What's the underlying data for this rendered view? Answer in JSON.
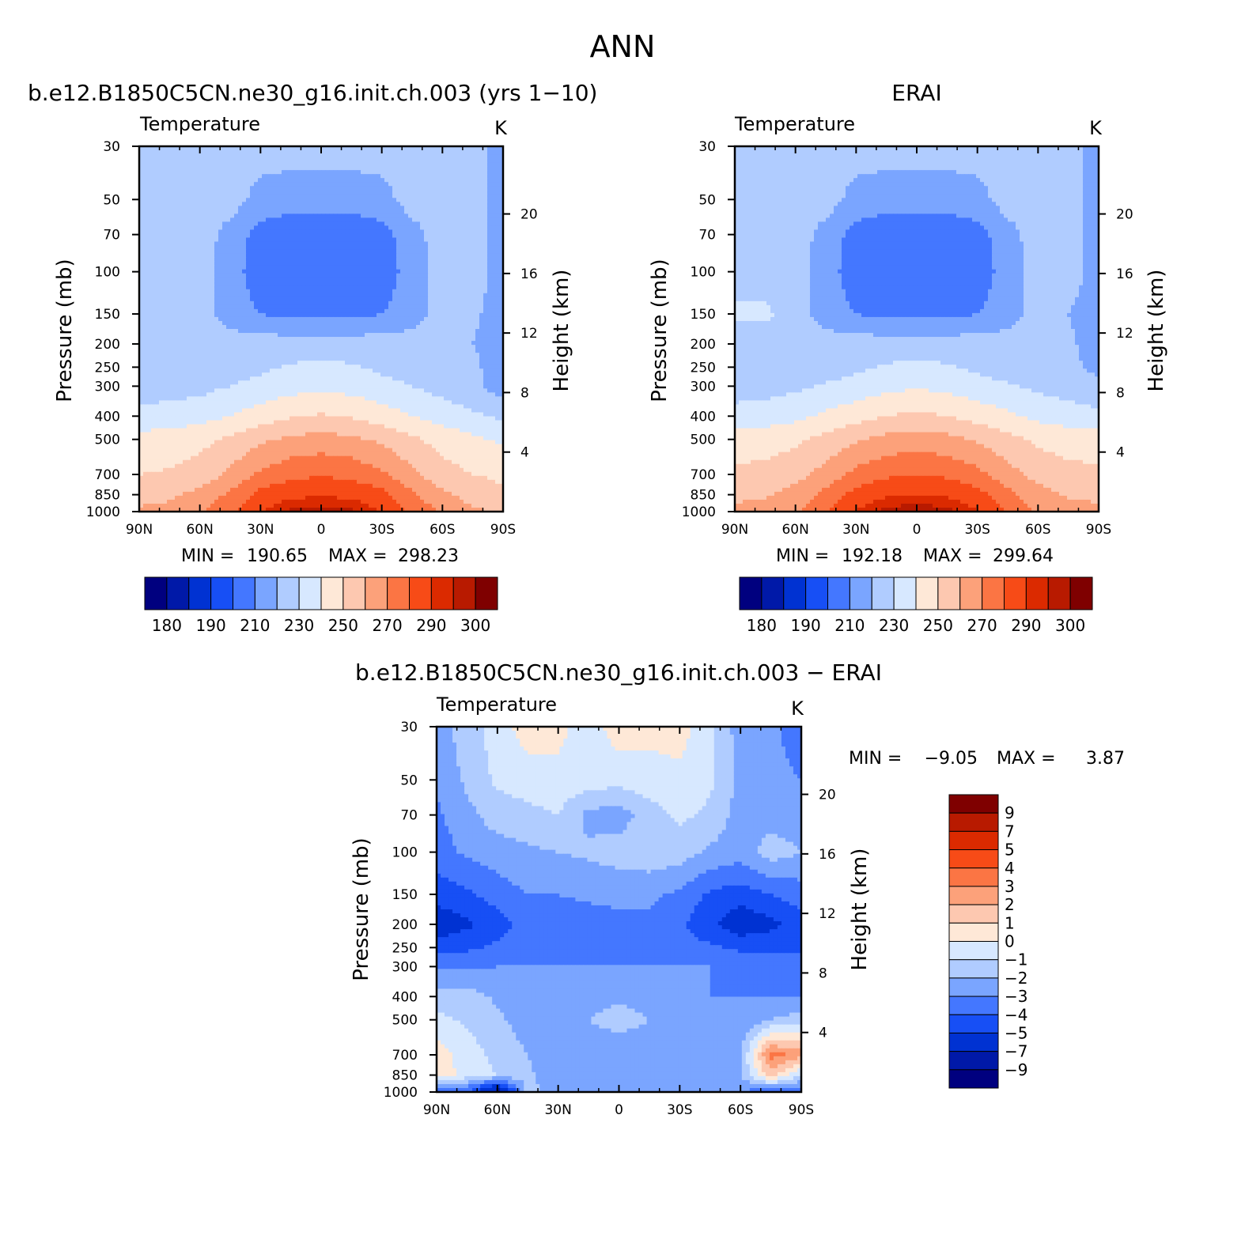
{
  "figure_title": "ANN",
  "colors": {
    "frame": "#000000",
    "abs_scale": [
      "#00007f",
      "#0019a8",
      "#0032d2",
      "#174ff5",
      "#4477ff",
      "#7aa5ff",
      "#b0ccff",
      "#d7e8ff",
      "#fee8d7",
      "#fdc8b0",
      "#fca17a",
      "#fb7544",
      "#f74b17",
      "#db2a00",
      "#b81a00",
      "#7f0000"
    ],
    "diff_scale": [
      "#00007f",
      "#0019a8",
      "#0032d2",
      "#174ff5",
      "#4477ff",
      "#7aa5ff",
      "#b0ccff",
      "#d7e8ff",
      "#fee8d7",
      "#fdc8b0",
      "#fca17a",
      "#fb7544",
      "#f74b17",
      "#db2a00",
      "#b81a00",
      "#7f0000"
    ]
  },
  "chart_data": [
    {
      "type": "heatmap",
      "title": "b.e12.B1850C5CN.ne30_g16.init.ch.003 (yrs 1−10)",
      "variable": "Temperature",
      "units": "K",
      "xlabel": "",
      "ylabel": "Pressure (mb)",
      "ylabel_right": "Height (km)",
      "x_ticks": [
        "90N",
        "60N",
        "30N",
        "0",
        "30S",
        "60S",
        "90S"
      ],
      "x_range": [
        90,
        -90
      ],
      "y_scale": "log",
      "y_range": [
        1000,
        30
      ],
      "y_ticks": [
        30,
        50,
        70,
        100,
        150,
        200,
        250,
        300,
        400,
        500,
        700,
        850,
        1000
      ],
      "y_ticks_right": [
        20,
        16,
        12,
        8,
        4
      ],
      "min_label": "MIN =",
      "min_value": "190.65",
      "max_label": "MAX =",
      "max_value": "298.23",
      "legend": "colorbar-below",
      "levels": [
        180,
        185,
        190,
        200,
        210,
        220,
        230,
        240,
        250,
        260,
        270,
        280,
        290,
        295,
        300
      ],
      "colorbar_labels": [
        "180",
        "190",
        "210",
        "230",
        "250",
        "270",
        "290",
        "300"
      ],
      "field": {
        "lat": [
          90,
          75,
          60,
          45,
          30,
          15,
          0,
          -15,
          -30,
          -45,
          -60,
          -75,
          -90
        ],
        "pressure": [
          30,
          50,
          70,
          100,
          150,
          200,
          250,
          300,
          400,
          500,
          700,
          850,
          1000
        ],
        "values": [
          [
            225,
            225,
            225,
            225,
            225,
            225,
            225,
            225,
            225,
            225,
            225,
            225,
            215
          ],
          [
            225,
            225,
            225,
            225,
            216,
            214,
            214,
            214,
            216,
            225,
            225,
            225,
            215
          ],
          [
            225,
            225,
            225,
            216,
            206,
            204,
            204,
            204,
            206,
            216,
            225,
            225,
            215
          ],
          [
            225,
            225,
            225,
            215,
            204,
            200,
            200,
            200,
            204,
            215,
            225,
            225,
            215
          ],
          [
            225,
            225,
            225,
            215,
            210,
            207,
            207,
            207,
            210,
            215,
            225,
            222,
            215
          ],
          [
            225,
            225,
            225,
            225,
            225,
            225,
            225,
            225,
            225,
            225,
            225,
            220,
            215
          ],
          [
            225,
            225,
            225,
            225,
            228,
            231,
            232,
            231,
            228,
            225,
            225,
            222,
            215
          ],
          [
            225,
            226,
            227,
            230,
            233,
            236,
            238,
            236,
            233,
            230,
            226,
            222,
            215
          ],
          [
            233,
            234,
            236,
            240,
            245,
            249,
            251,
            249,
            245,
            240,
            236,
            232,
            228
          ],
          [
            244,
            245,
            247,
            252,
            258,
            262,
            264,
            262,
            258,
            252,
            246,
            242,
            238
          ],
          [
            250,
            251,
            254,
            262,
            272,
            277,
            279,
            277,
            272,
            262,
            254,
            250,
            248
          ],
          [
            256,
            258,
            263,
            272,
            283,
            288,
            289,
            288,
            283,
            272,
            262,
            256,
            252
          ],
          [
            262,
            263,
            268,
            278,
            290,
            296,
            298,
            296,
            290,
            278,
            268,
            262,
            258
          ]
        ]
      }
    },
    {
      "type": "heatmap",
      "title": "ERAI",
      "variable": "Temperature",
      "units": "K",
      "xlabel": "",
      "ylabel": "Pressure (mb)",
      "ylabel_right": "Height (km)",
      "x_ticks": [
        "90N",
        "60N",
        "30N",
        "0",
        "30S",
        "60S",
        "90S"
      ],
      "x_range": [
        90,
        -90
      ],
      "y_scale": "log",
      "y_range": [
        1000,
        30
      ],
      "y_ticks": [
        30,
        50,
        70,
        100,
        150,
        200,
        250,
        300,
        400,
        500,
        700,
        850,
        1000
      ],
      "y_ticks_right": [
        20,
        16,
        12,
        8,
        4
      ],
      "min_label": "MIN =",
      "min_value": "192.18",
      "max_label": "MAX =",
      "max_value": "299.64",
      "legend": "colorbar-below",
      "levels": [
        180,
        185,
        190,
        200,
        210,
        220,
        230,
        240,
        250,
        260,
        270,
        280,
        290,
        295,
        300
      ],
      "colorbar_labels": [
        "180",
        "190",
        "210",
        "230",
        "250",
        "270",
        "290",
        "300"
      ],
      "field": {
        "lat": [
          90,
          75,
          60,
          45,
          30,
          15,
          0,
          -15,
          -30,
          -45,
          -60,
          -75,
          -90
        ],
        "pressure": [
          30,
          50,
          70,
          100,
          150,
          200,
          250,
          300,
          400,
          500,
          700,
          850,
          1000
        ],
        "values": [
          [
            225,
            225,
            225,
            225,
            225,
            225,
            225,
            225,
            225,
            225,
            225,
            225,
            215
          ],
          [
            225,
            225,
            225,
            225,
            216,
            214,
            214,
            214,
            216,
            225,
            225,
            225,
            215
          ],
          [
            225,
            225,
            225,
            216,
            206,
            204,
            204,
            204,
            206,
            216,
            225,
            225,
            215
          ],
          [
            225,
            225,
            225,
            215,
            204,
            201,
            201,
            201,
            204,
            215,
            225,
            225,
            215
          ],
          [
            232,
            232,
            225,
            215,
            210,
            207,
            207,
            207,
            210,
            215,
            225,
            220,
            215
          ],
          [
            225,
            225,
            225,
            225,
            225,
            225,
            225,
            225,
            225,
            225,
            225,
            222,
            215
          ],
          [
            225,
            225,
            225,
            225,
            228,
            231,
            232,
            231,
            228,
            225,
            225,
            222,
            218
          ],
          [
            225,
            226,
            228,
            231,
            234,
            237,
            239,
            237,
            234,
            231,
            228,
            225,
            222
          ],
          [
            234,
            235,
            237,
            242,
            246,
            250,
            252,
            250,
            246,
            242,
            237,
            235,
            233
          ],
          [
            245,
            246,
            248,
            253,
            259,
            263,
            265,
            263,
            259,
            253,
            248,
            246,
            245
          ],
          [
            252,
            253,
            256,
            264,
            273,
            278,
            280,
            278,
            273,
            264,
            256,
            253,
            252
          ],
          [
            258,
            259,
            264,
            273,
            284,
            289,
            290,
            289,
            284,
            273,
            264,
            259,
            258
          ],
          [
            262,
            264,
            269,
            279,
            291,
            297,
            299,
            297,
            291,
            279,
            269,
            264,
            262
          ]
        ]
      }
    },
    {
      "type": "heatmap",
      "title": "b.e12.B1850C5CN.ne30_g16.init.ch.003 − ERAI",
      "variable": "Temperature",
      "units": "K",
      "xlabel": "",
      "ylabel": "Pressure (mb)",
      "ylabel_right": "Height (km)",
      "x_ticks": [
        "90N",
        "60N",
        "30N",
        "0",
        "30S",
        "60S",
        "90S"
      ],
      "x_range": [
        90,
        -90
      ],
      "y_scale": "log",
      "y_range": [
        1000,
        30
      ],
      "y_ticks": [
        30,
        50,
        70,
        100,
        150,
        200,
        250,
        300,
        400,
        500,
        700,
        850,
        1000
      ],
      "y_ticks_right": [
        20,
        16,
        12,
        8,
        4
      ],
      "min_label": "MIN =",
      "min_value": "−9.05",
      "max_label": "MAX =",
      "max_value": "3.87",
      "legend": "colorbar-right",
      "levels": [
        -9,
        -7,
        -5,
        -4,
        -3,
        -2,
        -1,
        0,
        1,
        2,
        3,
        4,
        5,
        7,
        9
      ],
      "colorbar_labels": [
        "9",
        "7",
        "5",
        "4",
        "3",
        "2",
        "1",
        "0",
        "−1",
        "−2",
        "−3",
        "−4",
        "−5",
        "−7",
        "−9"
      ],
      "field": {
        "lat": [
          90,
          75,
          60,
          45,
          30,
          15,
          0,
          -15,
          -30,
          -45,
          -60,
          -75,
          -90
        ],
        "pressure": [
          30,
          50,
          70,
          100,
          150,
          200,
          250,
          300,
          400,
          500,
          700,
          850,
          1000
        ],
        "values": [
          [
            -2.5,
            -1.5,
            -0.5,
            0.5,
            0.3,
            -0.5,
            0.5,
            0.3,
            0.5,
            -0.8,
            -2.5,
            -2.8,
            -3.5
          ],
          [
            -2.8,
            -1.8,
            -0.8,
            -0.5,
            -0.3,
            -0.5,
            -0.6,
            -0.4,
            -0.3,
            -0.8,
            -2.3,
            -2.7,
            -3.0
          ],
          [
            -3.2,
            -2.3,
            -1.5,
            -1.3,
            -1.0,
            -2.3,
            -2.5,
            -1.5,
            -0.8,
            -1.2,
            -2.5,
            -2.5,
            -2.5
          ],
          [
            -3.5,
            -2.8,
            -2.5,
            -2.2,
            -2.0,
            -1.8,
            -1.5,
            -1.3,
            -1.5,
            -2.2,
            -2.5,
            -1.5,
            -2.0
          ],
          [
            -4.5,
            -4.2,
            -3.5,
            -3.0,
            -3.0,
            -2.8,
            -2.8,
            -2.8,
            -3.2,
            -4.2,
            -4.5,
            -4.0,
            -3.5
          ],
          [
            -5.8,
            -5.2,
            -4.5,
            -3.6,
            -3.5,
            -3.5,
            -3.2,
            -3.2,
            -3.8,
            -4.8,
            -5.8,
            -5.3,
            -4.5
          ],
          [
            -4.5,
            -4.2,
            -3.8,
            -3.5,
            -3.2,
            -3.5,
            -3.8,
            -3.5,
            -3.6,
            -3.8,
            -4.2,
            -4.2,
            -4.2
          ],
          [
            -3.2,
            -3.2,
            -3.0,
            -3.0,
            -3.0,
            -3.0,
            -3.0,
            -3.0,
            -3.0,
            -3.0,
            -3.2,
            -3.2,
            -3.2
          ],
          [
            -1.5,
            -1.5,
            -2.2,
            -2.8,
            -3.0,
            -2.6,
            -2.2,
            -2.6,
            -3.0,
            -3.0,
            -3.0,
            -3.0,
            -3.0
          ],
          [
            -0.7,
            -1.2,
            -1.8,
            -2.5,
            -2.5,
            -2.0,
            -1.5,
            -2.0,
            -2.6,
            -2.8,
            -2.8,
            -2.0,
            -1.5
          ],
          [
            0.5,
            -0.5,
            -1.3,
            -2.0,
            -2.8,
            -2.8,
            -2.8,
            -2.8,
            -2.8,
            -2.8,
            -2.2,
            3.5,
            2.5
          ],
          [
            0.8,
            -0.5,
            -1.0,
            -1.8,
            -2.7,
            -2.8,
            -3.0,
            -2.8,
            -2.8,
            -2.6,
            -2.0,
            1.5,
            -1.0
          ],
          [
            -3.5,
            -4.0,
            -8.0,
            -1.5,
            -2.8,
            -3.0,
            -3.0,
            -3.0,
            -3.0,
            -3.0,
            -3.0,
            -4.0,
            -4.0
          ]
        ]
      }
    }
  ]
}
